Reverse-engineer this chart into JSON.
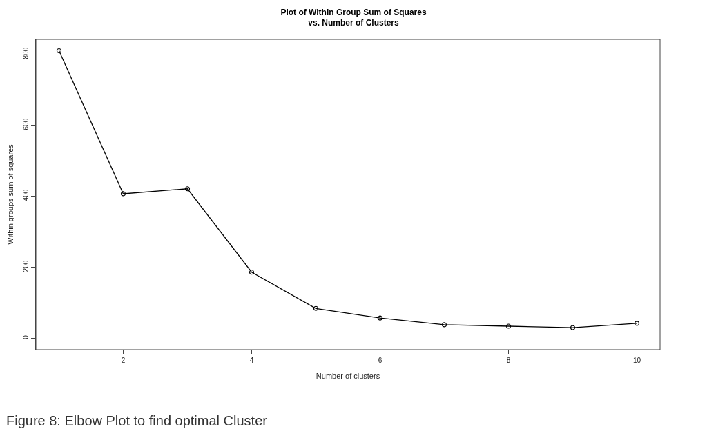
{
  "chart_data": {
    "type": "line",
    "title": "Plot of Within Group Sum of Squares\nvs. Number of Clusters",
    "xlabel": "Number of clusters",
    "ylabel": "Within groups sum of squares",
    "x": [
      1,
      2,
      3,
      4,
      5,
      6,
      7,
      8,
      9,
      10
    ],
    "series": [
      {
        "color": "#000000",
        "values": [
          810,
          407,
          421,
          186,
          84,
          57,
          38,
          34,
          30,
          42
        ]
      }
    ],
    "xlim": [
      0.64,
      10.36
    ],
    "ylim": [
      -32,
      842
    ],
    "xticks": [
      2,
      4,
      6,
      8,
      10
    ],
    "yticks": [
      0,
      200,
      400,
      600,
      800
    ],
    "marker": "circle",
    "line_style": "solid",
    "legend": false,
    "annotations": [
      "Figure 8: Elbow Plot to find optimal Cluster"
    ]
  }
}
